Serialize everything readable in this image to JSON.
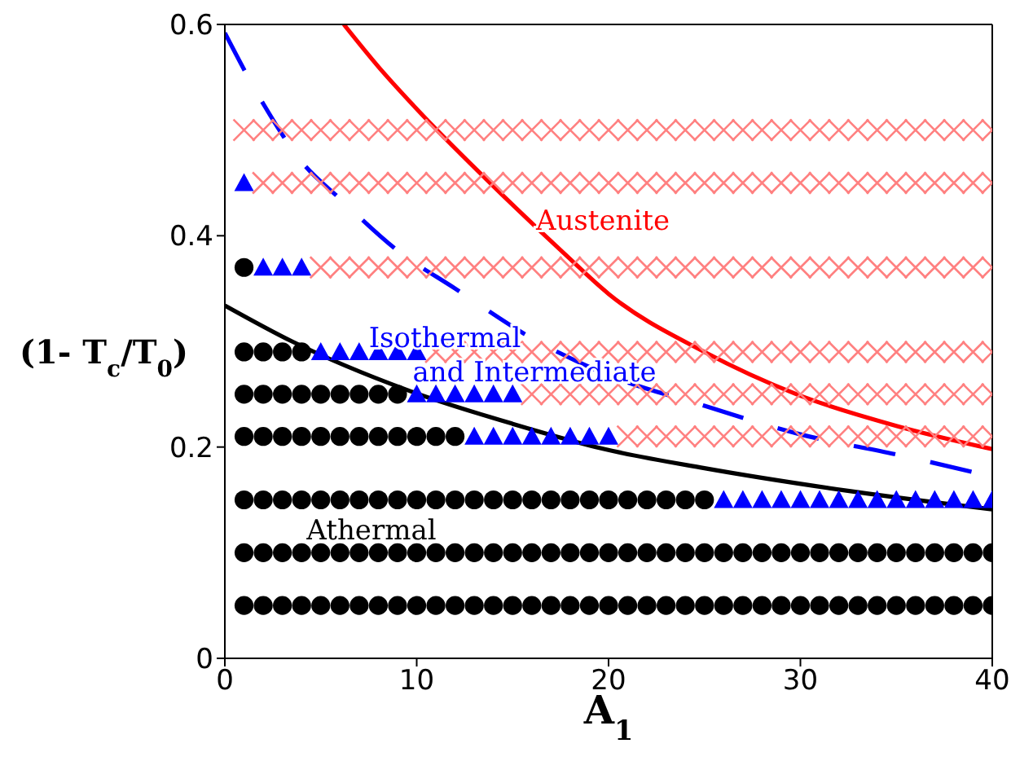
{
  "chart_data": {
    "type": "scatter",
    "xlabel": "A$_{1}$",
    "ylabel": "(1- T$_{c}$/T$_{0}$)",
    "xlim": [
      0,
      40
    ],
    "ylim": [
      0,
      0.6
    ],
    "xticks": [
      0,
      10,
      20,
      30,
      40
    ],
    "yticks": [
      0,
      0.2,
      0.4,
      0.6
    ],
    "series": [
      {
        "marker": "circle",
        "color": "#000000",
        "x": [
          1,
          2,
          3,
          4,
          5,
          6,
          7,
          8,
          9,
          10,
          11,
          12,
          13,
          14,
          15,
          16,
          17,
          18,
          19,
          20,
          21,
          22,
          23,
          24,
          25,
          26,
          27,
          28,
          29,
          30,
          31,
          32,
          33,
          34,
          35,
          36,
          37,
          38,
          39,
          40,
          1,
          2,
          3,
          4,
          5,
          6,
          7,
          8,
          9,
          10,
          11,
          12,
          13,
          14,
          15,
          16,
          17,
          18,
          19,
          20,
          21,
          22,
          23,
          24,
          25,
          26,
          27,
          28,
          29,
          30,
          31,
          32,
          33,
          34,
          35,
          36,
          37,
          38,
          39,
          40,
          1,
          2,
          3,
          4,
          5,
          6,
          7,
          8,
          9,
          10,
          11,
          12,
          13,
          14,
          15,
          16,
          17,
          18,
          19,
          20,
          21,
          22,
          23,
          24,
          25,
          1,
          2,
          3,
          4,
          5,
          6,
          7,
          8,
          9,
          10,
          11,
          12,
          1,
          2,
          3,
          4,
          5,
          6,
          7,
          8,
          9,
          1,
          2,
          3,
          4,
          1
        ],
        "values": [
          0.05,
          0.05,
          0.05,
          0.05,
          0.05,
          0.05,
          0.05,
          0.05,
          0.05,
          0.05,
          0.05,
          0.05,
          0.05,
          0.05,
          0.05,
          0.05,
          0.05,
          0.05,
          0.05,
          0.05,
          0.05,
          0.05,
          0.05,
          0.05,
          0.05,
          0.05,
          0.05,
          0.05,
          0.05,
          0.05,
          0.05,
          0.05,
          0.05,
          0.05,
          0.05,
          0.05,
          0.05,
          0.05,
          0.05,
          0.05,
          0.1,
          0.1,
          0.1,
          0.1,
          0.1,
          0.1,
          0.1,
          0.1,
          0.1,
          0.1,
          0.1,
          0.1,
          0.1,
          0.1,
          0.1,
          0.1,
          0.1,
          0.1,
          0.1,
          0.1,
          0.1,
          0.1,
          0.1,
          0.1,
          0.1,
          0.1,
          0.1,
          0.1,
          0.1,
          0.1,
          0.1,
          0.1,
          0.1,
          0.1,
          0.1,
          0.1,
          0.1,
          0.1,
          0.1,
          0.1,
          0.15,
          0.15,
          0.15,
          0.15,
          0.15,
          0.15,
          0.15,
          0.15,
          0.15,
          0.15,
          0.15,
          0.15,
          0.15,
          0.15,
          0.15,
          0.15,
          0.15,
          0.15,
          0.15,
          0.15,
          0.15,
          0.15,
          0.15,
          0.15,
          0.15,
          0.21,
          0.21,
          0.21,
          0.21,
          0.21,
          0.21,
          0.21,
          0.21,
          0.21,
          0.21,
          0.21,
          0.21,
          0.25,
          0.25,
          0.25,
          0.25,
          0.25,
          0.25,
          0.25,
          0.25,
          0.25,
          0.29,
          0.29,
          0.29,
          0.29,
          0.37
        ]
      },
      {
        "marker": "triangle",
        "color": "#0000ff",
        "x": [
          26,
          27,
          28,
          29,
          30,
          31,
          32,
          33,
          34,
          35,
          36,
          37,
          38,
          39,
          40,
          13,
          14,
          15,
          16,
          17,
          18,
          19,
          20,
          10,
          11,
          12,
          13,
          14,
          15,
          5,
          6,
          7,
          8,
          9,
          10,
          2,
          3,
          4,
          1
        ],
        "values": [
          0.15,
          0.15,
          0.15,
          0.15,
          0.15,
          0.15,
          0.15,
          0.15,
          0.15,
          0.15,
          0.15,
          0.15,
          0.15,
          0.15,
          0.15,
          0.21,
          0.21,
          0.21,
          0.21,
          0.21,
          0.21,
          0.21,
          0.21,
          0.25,
          0.25,
          0.25,
          0.25,
          0.25,
          0.25,
          0.29,
          0.29,
          0.29,
          0.29,
          0.29,
          0.29,
          0.37,
          0.37,
          0.37,
          0.45
        ]
      },
      {
        "marker": "cross",
        "color": "#ff8080",
        "x": [
          21,
          22,
          23,
          24,
          25,
          26,
          27,
          28,
          29,
          30,
          31,
          32,
          33,
          34,
          35,
          36,
          37,
          38,
          39,
          40,
          16,
          17,
          18,
          19,
          20,
          21,
          22,
          23,
          24,
          25,
          26,
          27,
          28,
          29,
          30,
          31,
          32,
          33,
          34,
          35,
          36,
          37,
          38,
          39,
          40,
          11,
          12,
          13,
          14,
          15,
          16,
          17,
          18,
          19,
          20,
          21,
          22,
          23,
          24,
          25,
          26,
          27,
          28,
          29,
          30,
          31,
          32,
          33,
          34,
          35,
          36,
          37,
          38,
          39,
          40,
          5,
          6,
          7,
          8,
          9,
          10,
          11,
          12,
          13,
          14,
          15,
          16,
          17,
          18,
          19,
          20,
          21,
          22,
          23,
          24,
          25,
          26,
          27,
          28,
          29,
          30,
          31,
          32,
          33,
          34,
          35,
          36,
          37,
          38,
          39,
          40,
          2,
          3,
          4,
          5,
          6,
          7,
          8,
          9,
          10,
          11,
          12,
          13,
          14,
          15,
          16,
          17,
          18,
          19,
          20,
          21,
          22,
          23,
          24,
          25,
          26,
          27,
          28,
          29,
          30,
          31,
          32,
          33,
          34,
          35,
          36,
          37,
          38,
          39,
          40,
          1,
          2,
          3,
          4,
          5,
          6,
          7,
          8,
          9,
          10,
          11,
          12,
          13,
          14,
          15,
          16,
          17,
          18,
          19,
          20,
          21,
          22,
          23,
          24,
          25,
          26,
          27,
          28,
          29,
          30,
          31,
          32,
          33,
          34,
          35,
          36,
          37,
          38,
          39,
          40
        ],
        "values": [
          0.21,
          0.21,
          0.21,
          0.21,
          0.21,
          0.21,
          0.21,
          0.21,
          0.21,
          0.21,
          0.21,
          0.21,
          0.21,
          0.21,
          0.21,
          0.21,
          0.21,
          0.21,
          0.21,
          0.21,
          0.25,
          0.25,
          0.25,
          0.25,
          0.25,
          0.25,
          0.25,
          0.25,
          0.25,
          0.25,
          0.25,
          0.25,
          0.25,
          0.25,
          0.25,
          0.25,
          0.25,
          0.25,
          0.25,
          0.25,
          0.25,
          0.25,
          0.25,
          0.25,
          0.25,
          0.29,
          0.29,
          0.29,
          0.29,
          0.29,
          0.29,
          0.29,
          0.29,
          0.29,
          0.29,
          0.29,
          0.29,
          0.29,
          0.29,
          0.29,
          0.29,
          0.29,
          0.29,
          0.29,
          0.29,
          0.29,
          0.29,
          0.29,
          0.29,
          0.29,
          0.29,
          0.29,
          0.29,
          0.29,
          0.29,
          0.37,
          0.37,
          0.37,
          0.37,
          0.37,
          0.37,
          0.37,
          0.37,
          0.37,
          0.37,
          0.37,
          0.37,
          0.37,
          0.37,
          0.37,
          0.37,
          0.37,
          0.37,
          0.37,
          0.37,
          0.37,
          0.37,
          0.37,
          0.37,
          0.37,
          0.37,
          0.37,
          0.37,
          0.37,
          0.37,
          0.37,
          0.37,
          0.37,
          0.37,
          0.37,
          0.37,
          0.45,
          0.45,
          0.45,
          0.45,
          0.45,
          0.45,
          0.45,
          0.45,
          0.45,
          0.45,
          0.45,
          0.45,
          0.45,
          0.45,
          0.45,
          0.45,
          0.45,
          0.45,
          0.45,
          0.45,
          0.45,
          0.45,
          0.45,
          0.45,
          0.45,
          0.45,
          0.45,
          0.45,
          0.45,
          0.45,
          0.45,
          0.45,
          0.45,
          0.45,
          0.45,
          0.45,
          0.45,
          0.45,
          0.45,
          0.5,
          0.5,
          0.5,
          0.5,
          0.5,
          0.5,
          0.5,
          0.5,
          0.5,
          0.5,
          0.5,
          0.5,
          0.5,
          0.5,
          0.5,
          0.5,
          0.5,
          0.5,
          0.5,
          0.5,
          0.5,
          0.5,
          0.5,
          0.5,
          0.5,
          0.5,
          0.5,
          0.5,
          0.5,
          0.5,
          0.5,
          0.5,
          0.5,
          0.5,
          0.5,
          0.5,
          0.5,
          0.5,
          0.5,
          0.5
        ]
      },
      {
        "type": "line",
        "line_style": "solid",
        "color": "#ff0000",
        "x": [
          6.2,
          8,
          10,
          13.6,
          17.7,
          20,
          25,
          29.8,
          35,
          40
        ],
        "values": [
          0.6,
          0.56,
          0.52,
          0.454,
          0.383,
          0.345,
          0.29,
          0.25,
          0.22,
          0.198
        ]
      },
      {
        "type": "line",
        "line_style": "dashed",
        "color": "#0000ff",
        "x": [
          0,
          2,
          4,
          6,
          9,
          12,
          16,
          20,
          25,
          30,
          35,
          40
        ],
        "values": [
          0.592,
          0.525,
          0.47,
          0.435,
          0.386,
          0.35,
          0.303,
          0.268,
          0.239,
          0.212,
          0.193,
          0.172
        ]
      },
      {
        "type": "line",
        "line_style": "solid",
        "color": "#000000",
        "x": [
          0,
          3.5,
          9.5,
          15,
          19.8,
          25,
          32.7,
          40
        ],
        "values": [
          0.334,
          0.3,
          0.254,
          0.222,
          0.198,
          0.18,
          0.158,
          0.141
        ]
      }
    ],
    "annotations": [
      "Austenite",
      "Isothermal",
      "and Intermediate",
      "Athermal"
    ]
  }
}
